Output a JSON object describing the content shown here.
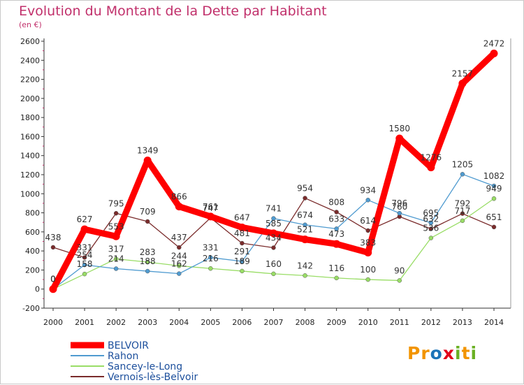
{
  "title": "Evolution du Montant de la Dette par Habitant",
  "unit": "(en €)",
  "brand": {
    "text": "Proxiti",
    "letters": [
      {
        "char": "P",
        "color": "#f29400"
      },
      {
        "char": "r",
        "color": "#f29400"
      },
      {
        "char": "o",
        "color": "#1c74b8"
      },
      {
        "char": "x",
        "color": "#e2001a"
      },
      {
        "char": "i",
        "color": "#6ab023"
      },
      {
        "char": "t",
        "color": "#f29400"
      },
      {
        "char": "i",
        "color": "#6ab023"
      }
    ]
  },
  "chart_data": {
    "type": "line",
    "x": [
      2000,
      2001,
      2002,
      2003,
      2004,
      2005,
      2006,
      2007,
      2008,
      2009,
      2010,
      2011,
      2012,
      2013,
      2014
    ],
    "xlabel": "",
    "ylabel": "",
    "ylim": [
      -200,
      2600
    ],
    "yticks": [
      -200,
      0,
      200,
      400,
      600,
      800,
      1000,
      1200,
      1400,
      1600,
      1800,
      2000,
      2200,
      2400,
      2600
    ],
    "grid": false,
    "legend_position": "bottom-left",
    "series": [
      {
        "name": "BELVOIR",
        "color": "#ff0000",
        "values": [
          0,
          627,
          553,
          1349,
          866,
          761,
          647,
          585,
          521,
          473,
          383,
          1580,
          1276,
          2157,
          2472
        ],
        "labels": [
          "0",
          "627",
          "553",
          "1349",
          "866",
          "761",
          "647",
          "585",
          "521",
          "473",
          "383",
          "1580",
          "1276",
          "2157",
          "2472"
        ]
      },
      {
        "name": "Rahon",
        "color": "#4f9bd0",
        "values": [
          0,
          254,
          214,
          188,
          162,
          331,
          291,
          741,
          674,
          633,
          934,
          796,
          695,
          1205,
          1082
        ],
        "labels": [
          "0",
          "254",
          "214",
          "188",
          "162",
          "331",
          "291",
          "741",
          "674",
          "633",
          "934",
          "796",
          "695",
          "1205",
          "1082"
        ]
      },
      {
        "name": "Sancey-le-Long",
        "color": "#99dd66",
        "values": [
          0,
          158,
          317,
          283,
          244,
          216,
          189,
          160,
          142,
          116,
          100,
          90,
          536,
          717,
          949
        ],
        "labels": [
          "0",
          "158",
          "317",
          "283",
          "244",
          "216",
          "189",
          "160",
          "142",
          "116",
          "100",
          "90",
          "536",
          "717",
          "949"
        ]
      },
      {
        "name": "Vernois-lès-Belvoir",
        "color": "#7a2b2b",
        "values": [
          438,
          331,
          795,
          709,
          437,
          747,
          481,
          434,
          954,
          808,
          614,
          760,
          632,
          792,
          651
        ],
        "labels": [
          "438",
          "331",
          "795",
          "709",
          "437",
          "747",
          "481",
          "434",
          "954",
          "808",
          "614",
          "760",
          "632",
          "792",
          "651"
        ]
      }
    ]
  }
}
